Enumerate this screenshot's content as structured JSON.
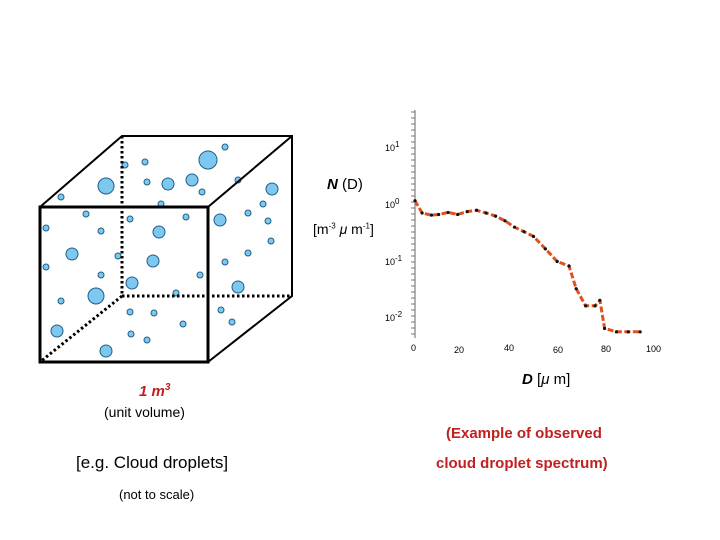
{
  "cube": {
    "volume_value": "1 m",
    "volume_exp": "3",
    "volume_note": "(unit volume)",
    "example_label": "[e.g. Cloud droplets]",
    "scale_note": "(not to scale)"
  },
  "axis": {
    "y_title_main": "N",
    "y_title_arg": "(D)",
    "y_units": {
      "open": "[m",
      "exp1": "-3",
      "mu": "μ",
      "unit": " m",
      "exp2": "-1",
      "close": "]"
    },
    "y_ticks": [
      {
        "base": "10",
        "exp": "1"
      },
      {
        "base": "10",
        "exp": "0"
      },
      {
        "base": "10",
        "exp": "-1"
      },
      {
        "base": "10",
        "exp": "-2"
      }
    ],
    "x_ticks": [
      "0",
      "20",
      "40",
      "60",
      "80",
      "100"
    ],
    "x_title": {
      "var": "D",
      "open": " [",
      "mu": "μ",
      "unit": " m]"
    }
  },
  "caption": {
    "line1": "(Example of observed",
    "line2": "cloud droplet spectrum)"
  },
  "chart_data": {
    "type": "line",
    "title": "Example of observed cloud droplet spectrum",
    "xlabel": "D [μm]",
    "ylabel": "N(D) [m-3 μm-1]",
    "xlim": [
      0,
      100
    ],
    "ylim_log10": [
      -2.4,
      1.3
    ],
    "x": [
      0,
      3,
      7,
      10,
      14,
      18,
      22,
      26,
      30,
      34,
      38,
      42,
      46,
      50,
      55,
      60,
      65,
      68,
      72,
      76,
      78,
      80,
      85,
      90,
      95
    ],
    "y": [
      1.4,
      0.85,
      0.78,
      0.8,
      0.87,
      0.8,
      0.9,
      0.95,
      0.85,
      0.75,
      0.62,
      0.48,
      0.4,
      0.33,
      0.2,
      0.12,
      0.1,
      0.04,
      0.02,
      0.02,
      0.025,
      0.008,
      0.007,
      0.007,
      0.007
    ],
    "line_color": "#e05020"
  },
  "colors": {
    "droplet_fill": "#7ec8f0",
    "droplet_stroke": "#1f5f8a",
    "line": "#e05020"
  }
}
